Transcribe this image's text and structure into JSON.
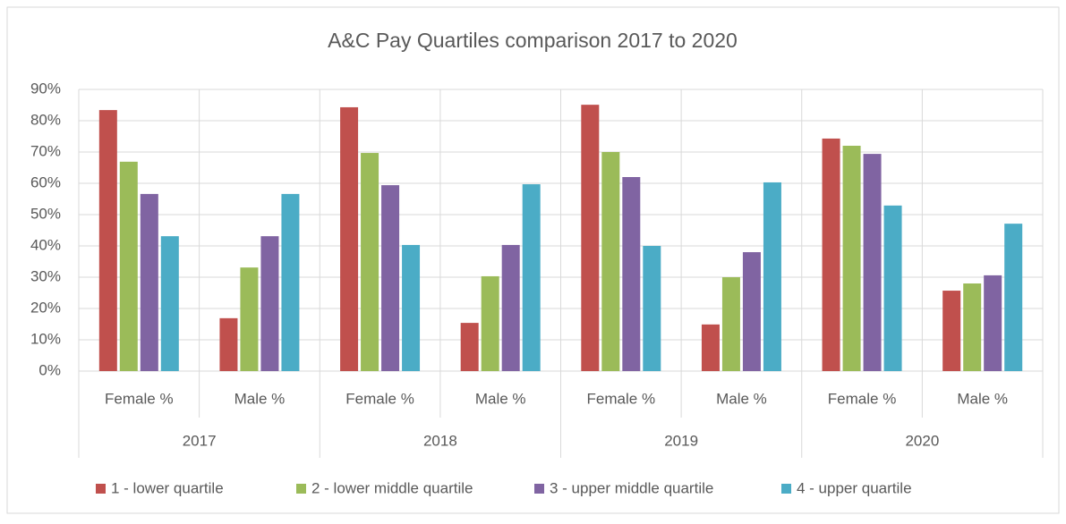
{
  "chart_data": {
    "type": "bar",
    "title": "A&C Pay Quartiles comparison 2017 to 2020",
    "categories": [
      "Female %",
      "Male %",
      "Female %",
      "Male %",
      "Female %",
      "Male %",
      "Female %",
      "Male %"
    ],
    "group_labels": [
      "2017",
      "2018",
      "2019",
      "2020"
    ],
    "series": [
      {
        "name": "1 - lower quartile",
        "color": "#c0504d",
        "values": [
          83.4,
          16.9,
          84.3,
          15.4,
          85.1,
          14.9,
          74.3,
          25.7
        ]
      },
      {
        "name": "2 - lower middle quartile",
        "color": "#9bbb59",
        "values": [
          66.9,
          33.1,
          69.7,
          30.3,
          70.0,
          30.0,
          72.0,
          28.0
        ]
      },
      {
        "name": "3 - upper middle quartile",
        "color": "#8064a2",
        "values": [
          56.6,
          43.1,
          59.4,
          40.3,
          62.0,
          38.0,
          69.4,
          30.6
        ]
      },
      {
        "name": "4 - upper quartile",
        "color": "#4bacc6",
        "values": [
          43.1,
          56.6,
          40.3,
          59.7,
          40.0,
          60.3,
          52.9,
          47.1
        ]
      }
    ],
    "ylim": [
      0,
      90
    ],
    "yticks": [
      {
        "value": 0,
        "label": "0%"
      },
      {
        "value": 10,
        "label": "10%"
      },
      {
        "value": 20,
        "label": "20%"
      },
      {
        "value": 30,
        "label": "30%"
      },
      {
        "value": 40,
        "label": "40%"
      },
      {
        "value": 50,
        "label": "50%"
      },
      {
        "value": 60,
        "label": "60%"
      },
      {
        "value": 70,
        "label": "70%"
      },
      {
        "value": 80,
        "label": "80%"
      },
      {
        "value": 90,
        "label": "90%"
      }
    ],
    "grid": true,
    "legend": "bottom"
  }
}
